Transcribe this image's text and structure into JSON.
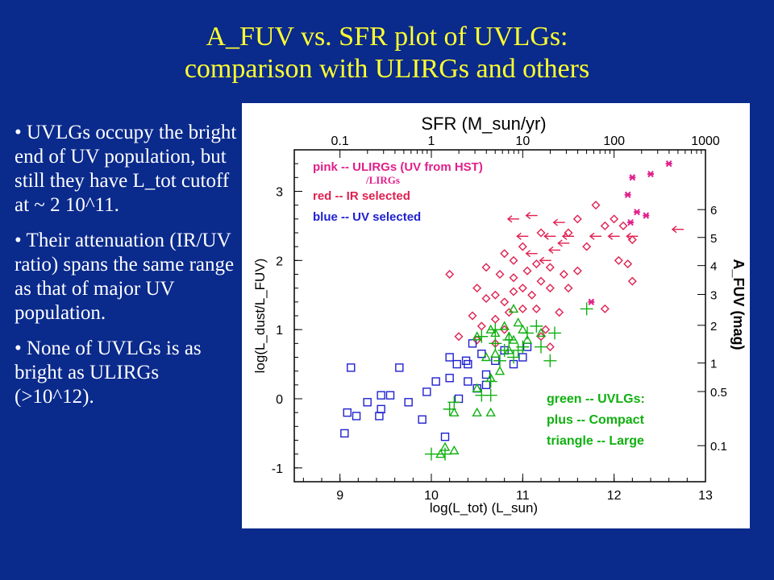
{
  "slide": {
    "title_line1": "A_FUV vs. SFR plot of UVLGs:",
    "title_line2": "comparison with ULIRGs and others",
    "bullets": [
      "• UVLGs occupy the bright end of UV population, but still they have L_tot cutoff at ~ 2 10^11.",
      "• Their attenuation (IR/UV ratio) spans the same range as that of major UV population.",
      "• None of UVLGs is as bright as ULIRGs (>10^12)."
    ]
  },
  "colors": {
    "background": "#0a2a8c",
    "title": "#ffff2e",
    "pink": "#e0208c",
    "red": "#e02050",
    "blue": "#2020d0",
    "green": "#10b010"
  },
  "chart_data": {
    "type": "scatter",
    "xlabel": "log(L_tot) (L_sun)",
    "ylabel": "log(L_dust/L_FUV)",
    "top_axis_label": "SFR (M_sun/yr)",
    "right_axis_label": "A_FUV (mag)",
    "xlim": [
      8.5,
      13
    ],
    "ylim": [
      -1.2,
      3.6
    ],
    "x_ticks": [
      "9",
      "10",
      "11",
      "12",
      "13"
    ],
    "y_ticks": [
      "-1",
      "0",
      "1",
      "2",
      "3"
    ],
    "top_ticks": [
      "0.1",
      "1",
      "10",
      "100",
      "1000"
    ],
    "right_ticks": [
      "0.1",
      "0.5",
      "1",
      "2",
      "3",
      "4",
      "5",
      "6"
    ],
    "legend": {
      "pink": "pink -- ULIRGs (UV from HST)",
      "pink_sub": "/LIRGs",
      "red": "red -- IR selected",
      "blue": "blue -- UV selected",
      "green": "green -- UVLGs:",
      "green_plus": "plus -- Compact",
      "green_triangle": "triangle -- Large"
    },
    "series": [
      {
        "name": "pink -- ULIRGs (UV from HST)",
        "marker": "asterisk",
        "color": "#e0208c",
        "points": [
          [
            12.2,
            3.2
          ],
          [
            12.4,
            3.25
          ],
          [
            12.6,
            3.4
          ],
          [
            12.15,
            2.95
          ],
          [
            12.25,
            2.7
          ],
          [
            12.35,
            2.65
          ],
          [
            12.18,
            2.55
          ],
          [
            11.75,
            1.4
          ]
        ]
      },
      {
        "name": "red -- IR selected (upper limits)",
        "marker": "arrow",
        "color": "#e02050",
        "points": [
          [
            10.9,
            2.6
          ],
          [
            11.1,
            2.65
          ],
          [
            11.4,
            2.55
          ],
          [
            11.0,
            2.35
          ],
          [
            11.3,
            2.35
          ],
          [
            11.5,
            2.35
          ],
          [
            11.1,
            2.1
          ],
          [
            11.25,
            2.0
          ],
          [
            11.35,
            2.15
          ],
          [
            11.8,
            2.35
          ],
          [
            12.0,
            2.35
          ],
          [
            12.2,
            2.35
          ],
          [
            12.7,
            2.45
          ],
          [
            11.45,
            2.25
          ]
        ]
      },
      {
        "name": "red -- IR selected",
        "marker": "diamond",
        "color": "#e02050",
        "points": [
          [
            10.2,
            1.8
          ],
          [
            10.5,
            1.6
          ],
          [
            10.6,
            1.45
          ],
          [
            10.7,
            1.5
          ],
          [
            10.8,
            1.4
          ],
          [
            10.9,
            1.55
          ],
          [
            11.0,
            1.6
          ],
          [
            11.1,
            1.5
          ],
          [
            11.2,
            1.7
          ],
          [
            11.3,
            1.6
          ],
          [
            10.6,
            1.9
          ],
          [
            10.75,
            1.8
          ],
          [
            10.9,
            1.75
          ],
          [
            11.05,
            1.85
          ],
          [
            11.15,
            1.95
          ],
          [
            11.3,
            1.9
          ],
          [
            11.45,
            1.8
          ],
          [
            11.6,
            1.85
          ],
          [
            11.5,
            1.6
          ],
          [
            10.45,
            1.2
          ],
          [
            10.55,
            1.05
          ],
          [
            10.7,
            1.15
          ],
          [
            10.85,
            1.25
          ],
          [
            11.0,
            1.3
          ],
          [
            11.15,
            1.3
          ],
          [
            11.4,
            1.25
          ],
          [
            10.3,
            0.9
          ],
          [
            10.5,
            0.85
          ],
          [
            10.8,
            1.0
          ],
          [
            11.25,
            1.0
          ],
          [
            10.9,
            2.0
          ],
          [
            11.0,
            2.2
          ],
          [
            10.8,
            2.1
          ],
          [
            11.2,
            2.4
          ],
          [
            11.6,
            2.6
          ],
          [
            11.9,
            2.5
          ],
          [
            12.1,
            2.5
          ],
          [
            12.2,
            2.3
          ],
          [
            12.05,
            2.0
          ],
          [
            12.15,
            1.95
          ],
          [
            11.7,
            2.2
          ],
          [
            11.5,
            2.4
          ],
          [
            11.8,
            2.8
          ],
          [
            12.0,
            2.6
          ],
          [
            11.9,
            1.3
          ],
          [
            12.2,
            1.7
          ],
          [
            11.3,
            0.75
          ],
          [
            11.2,
            0.9
          ],
          [
            10.7,
            0.8
          ]
        ]
      },
      {
        "name": "blue -- UV selected",
        "marker": "square",
        "color": "#2020d0",
        "points": [
          [
            9.08,
            -0.2
          ],
          [
            9.18,
            -0.25
          ],
          [
            9.43,
            -0.25
          ],
          [
            9.45,
            -0.15
          ],
          [
            9.3,
            -0.05
          ],
          [
            9.45,
            0.05
          ],
          [
            9.55,
            0.05
          ],
          [
            9.75,
            -0.05
          ],
          [
            9.95,
            0.1
          ],
          [
            10.05,
            0.25
          ],
          [
            10.2,
            0.3
          ],
          [
            10.28,
            0.5
          ],
          [
            10.4,
            0.5
          ],
          [
            10.3,
            0.0
          ],
          [
            10.5,
            0.15
          ],
          [
            10.6,
            0.35
          ],
          [
            10.7,
            0.55
          ],
          [
            10.55,
            0.65
          ],
          [
            10.45,
            0.8
          ],
          [
            10.38,
            0.55
          ],
          [
            10.6,
            0.2
          ],
          [
            10.8,
            0.7
          ],
          [
            10.9,
            0.5
          ],
          [
            11.05,
            0.75
          ],
          [
            11.0,
            0.6
          ],
          [
            9.12,
            0.45
          ],
          [
            9.65,
            0.45
          ],
          [
            10.15,
            -0.55
          ],
          [
            9.05,
            -0.5
          ],
          [
            9.9,
            -0.3
          ],
          [
            10.2,
            0.6
          ],
          [
            10.4,
            0.25
          ]
        ]
      },
      {
        "name": "green -- UVLGs: plus -- Compact",
        "marker": "plus",
        "color": "#10b010",
        "points": [
          [
            10.55,
            0.9
          ],
          [
            10.7,
            0.8
          ],
          [
            10.85,
            0.85
          ],
          [
            10.95,
            0.7
          ],
          [
            11.05,
            0.95
          ],
          [
            11.15,
            1.05
          ],
          [
            11.2,
            0.75
          ],
          [
            11.35,
            0.95
          ],
          [
            11.7,
            1.3
          ],
          [
            11.3,
            0.55
          ],
          [
            10.7,
            1.0
          ],
          [
            10.75,
            0.55
          ],
          [
            10.65,
            0.25
          ],
          [
            10.55,
            0.05
          ],
          [
            10.65,
            0.05
          ],
          [
            10.25,
            -0.05
          ],
          [
            10.2,
            -0.15
          ],
          [
            10.15,
            -0.8
          ],
          [
            10.0,
            -0.8
          ],
          [
            10.9,
            0.6
          ],
          [
            11.0,
            0.75
          ],
          [
            10.8,
            0.7
          ]
        ]
      },
      {
        "name": "green -- UVLGs: triangle -- Large",
        "marker": "triangle",
        "color": "#10b010",
        "points": [
          [
            10.7,
            0.95
          ],
          [
            10.8,
            1.05
          ],
          [
            10.85,
            0.9
          ],
          [
            10.95,
            1.1
          ],
          [
            10.9,
            1.3
          ],
          [
            10.65,
            1.0
          ],
          [
            10.5,
            0.9
          ],
          [
            10.6,
            0.6
          ],
          [
            10.65,
            0.3
          ],
          [
            10.5,
            0.15
          ],
          [
            10.7,
            0.65
          ],
          [
            10.75,
            0.4
          ],
          [
            10.25,
            -0.2
          ],
          [
            10.5,
            -0.2
          ],
          [
            10.65,
            -0.2
          ],
          [
            10.1,
            -0.8
          ],
          [
            10.15,
            -0.7
          ],
          [
            10.25,
            -0.75
          ],
          [
            11.0,
            1.0
          ],
          [
            11.05,
            0.85
          ],
          [
            11.2,
            0.95
          ],
          [
            10.9,
            0.85
          ],
          [
            10.85,
            0.7
          ]
        ]
      }
    ]
  }
}
